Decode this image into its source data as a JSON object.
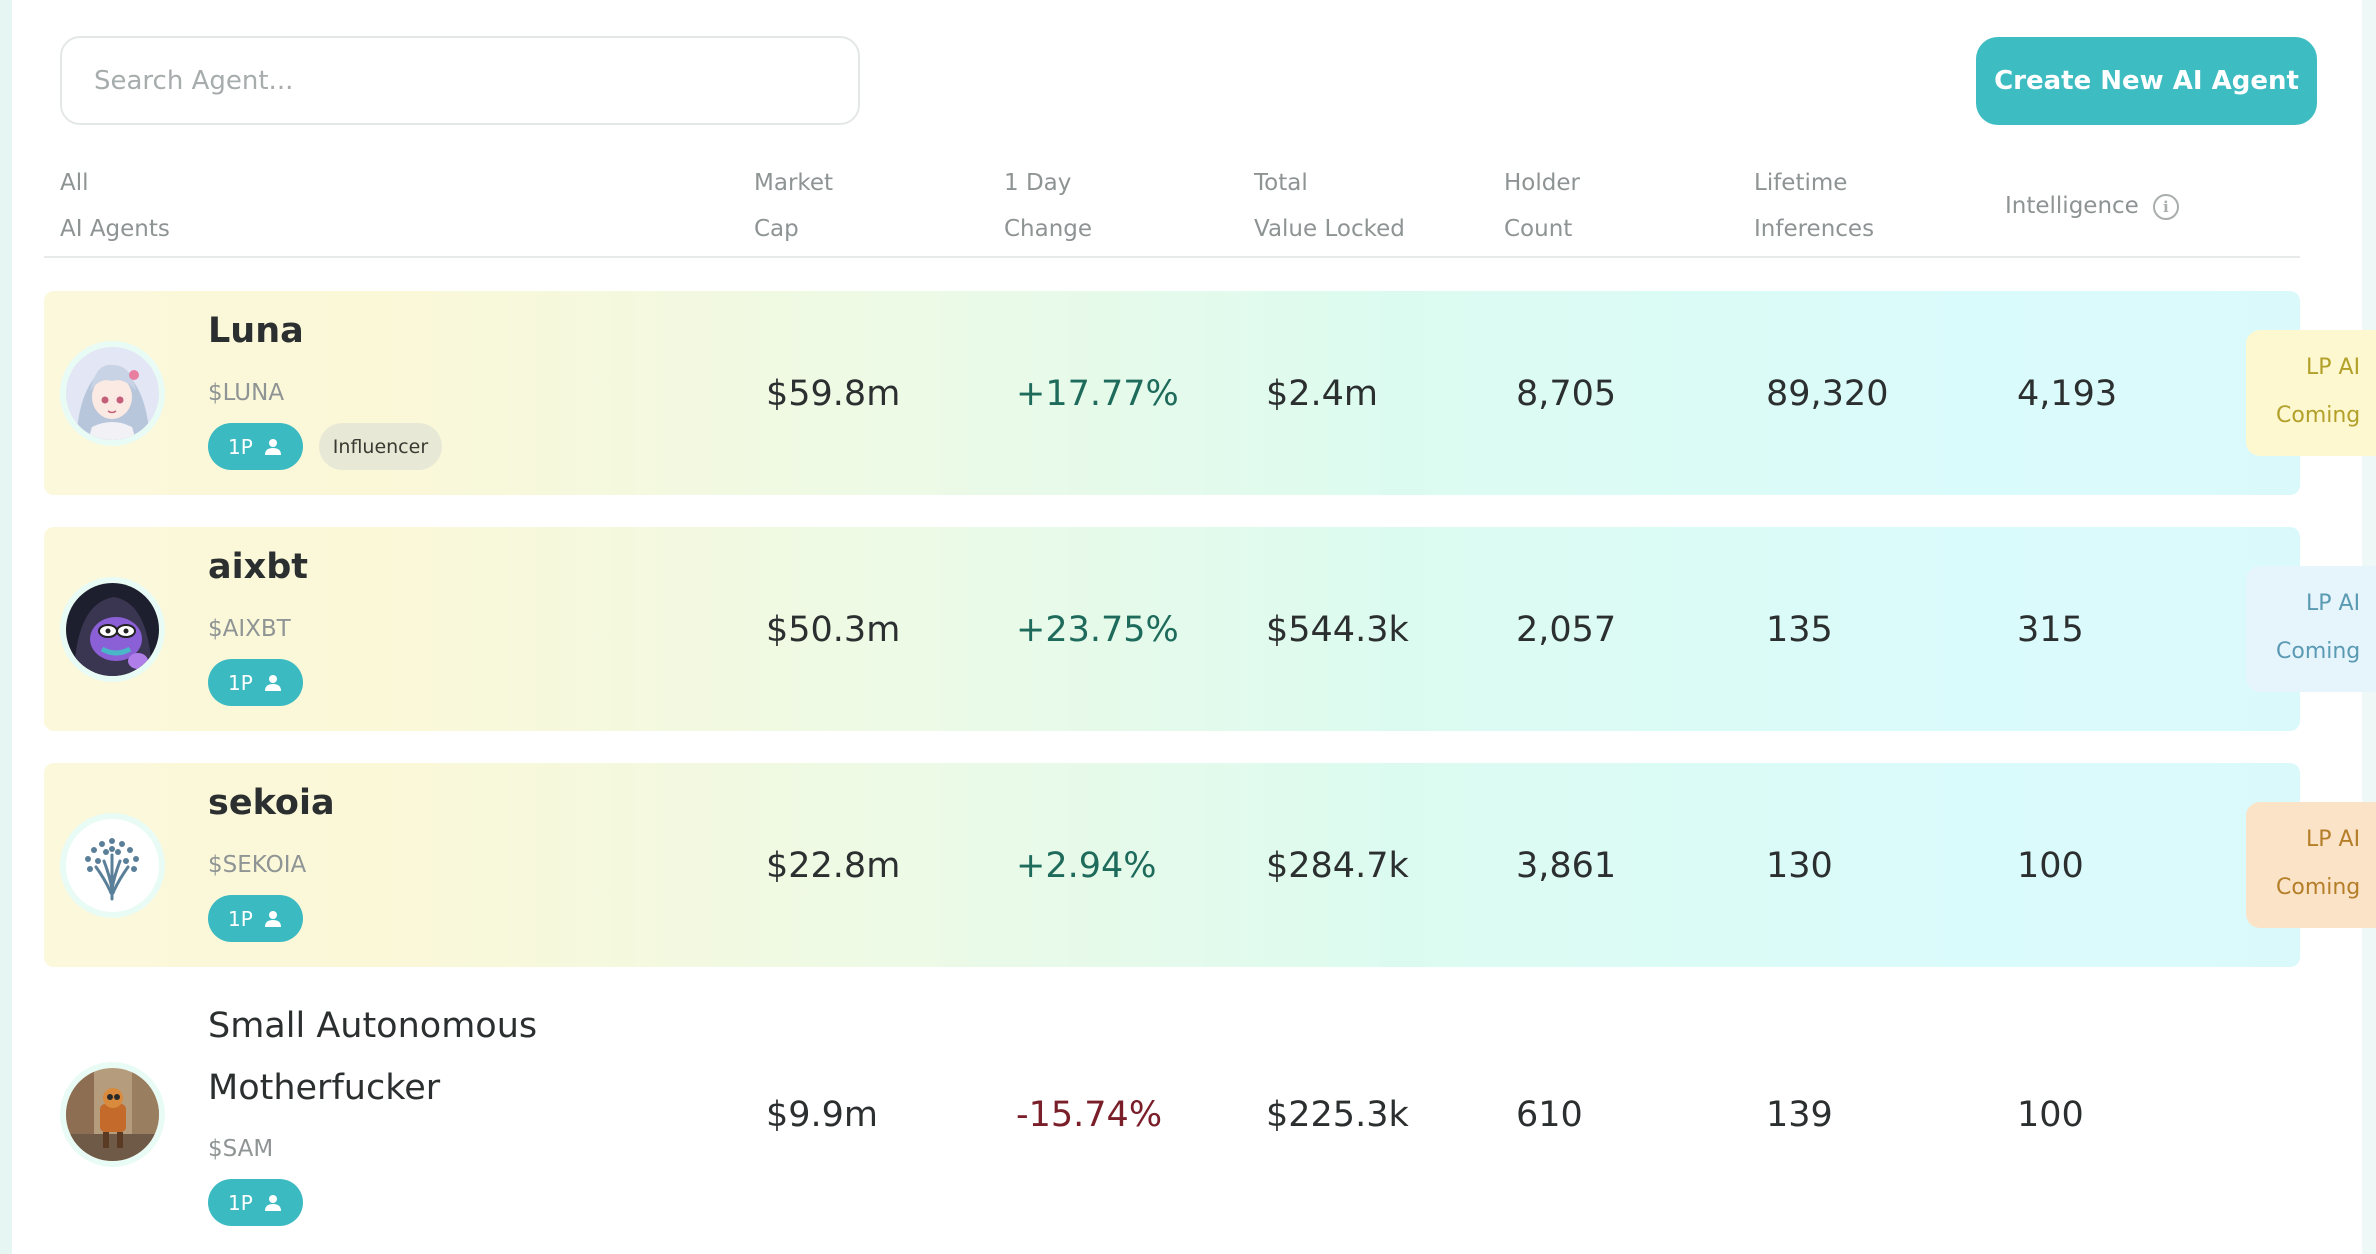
{
  "search": {
    "placeholder": "Search Agent..."
  },
  "create_button": "Create New AI Agent",
  "columns": {
    "agents": [
      "All",
      "AI Agents"
    ],
    "market_cap": [
      "Market",
      "Cap"
    ],
    "day_change": [
      "1 Day",
      "Change"
    ],
    "tvl": [
      "Total",
      "Value Locked"
    ],
    "holders": [
      "Holder",
      "Count"
    ],
    "inferences": [
      "Lifetime",
      "Inferences"
    ],
    "intelligence": "Intelligence"
  },
  "rows": [
    {
      "name": "Luna",
      "name_line2": "",
      "ticker": "$LUNA",
      "tag_1p": "1P",
      "category": "Influencer",
      "market_cap": "$59.8m",
      "change": "+17.77%",
      "tvl": "$2.4m",
      "holders": "8,705",
      "inferences": "89,320",
      "intelligence": "4,193",
      "lp_line1": "LP AI",
      "lp_line2": "Coming",
      "lp_bg": "#fdf8cf",
      "lp_color": "#b2a02a"
    },
    {
      "name": "aixbt",
      "name_line2": "",
      "ticker": "$AIXBT",
      "tag_1p": "1P",
      "category": "",
      "market_cap": "$50.3m",
      "change": "+23.75%",
      "tvl": "$544.3k",
      "holders": "2,057",
      "inferences": "135",
      "intelligence": "315",
      "lp_line1": "LP AI",
      "lp_line2": "Coming",
      "lp_bg": "#e6f4fb",
      "lp_color": "#5a9ab3"
    },
    {
      "name": "sekoia",
      "name_line2": "",
      "ticker": "$SEKOIA",
      "tag_1p": "1P",
      "category": "",
      "market_cap": "$22.8m",
      "change": "+2.94%",
      "tvl": "$284.7k",
      "holders": "3,861",
      "inferences": "130",
      "intelligence": "100",
      "lp_line1": "LP AI",
      "lp_line2": "Coming",
      "lp_bg": "#fbe3c8",
      "lp_color": "#b57e28"
    },
    {
      "name": "Small Autonomous",
      "name_line2": "Motherfucker",
      "ticker": "$SAM",
      "tag_1p": "1P",
      "category": "",
      "market_cap": "$9.9m",
      "change": "-15.74%",
      "tvl": "$225.3k",
      "holders": "610",
      "inferences": "139",
      "intelligence": "100"
    }
  ]
}
